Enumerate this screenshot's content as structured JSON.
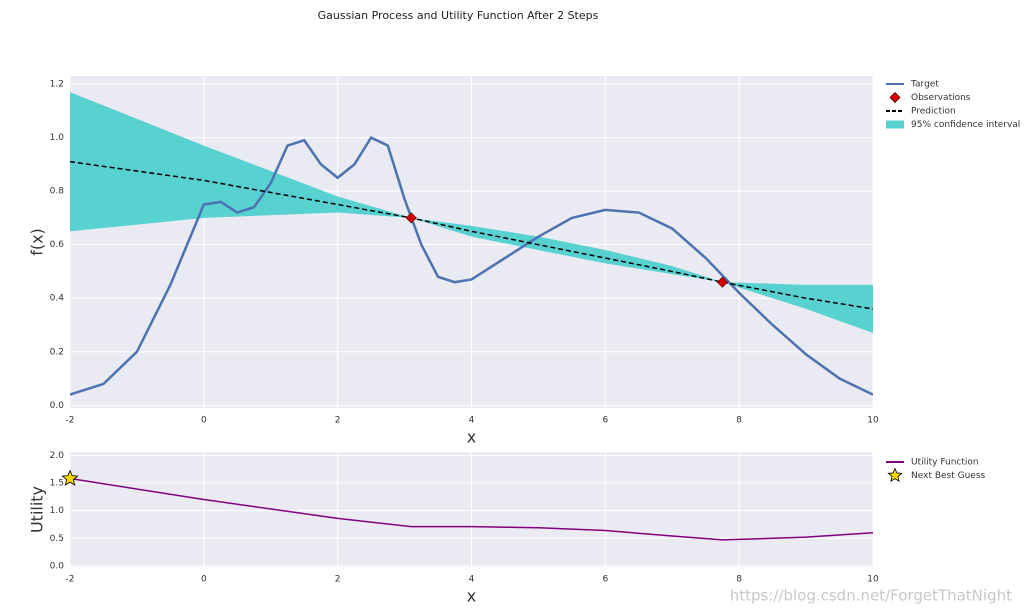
{
  "title": "Gaussian Process and Utility Function After 2 Steps",
  "watermark": "https://blog.csdn.net/ForgetThatNight",
  "chart_data": [
    {
      "type": "line",
      "xlabel": "x",
      "ylabel": "f(x)",
      "xlim": [
        -2,
        10
      ],
      "ylim": [
        -0.01,
        1.23
      ],
      "xticks": [
        -2,
        0,
        2,
        4,
        6,
        8,
        10
      ],
      "yticks": [
        {
          "value": 0,
          "label": "0.0"
        },
        0.2,
        0.4,
        0.6,
        0.8,
        {
          "value": 1,
          "label": "1.0"
        },
        1.2
      ],
      "grid": true,
      "legend": "outside right",
      "series": [
        {
          "name": "Target",
          "kind": "line",
          "style": "solid",
          "color": "#4c72b0",
          "x": [
            -2,
            -1.5,
            -1,
            -0.5,
            0,
            0.25,
            0.5,
            0.75,
            1,
            1.25,
            1.5,
            1.75,
            2,
            2.25,
            2.5,
            2.75,
            3,
            3.25,
            3.5,
            3.75,
            4,
            4.5,
            5,
            5.5,
            6,
            6.5,
            7,
            7.5,
            8,
            8.5,
            9,
            9.5,
            10
          ],
          "values": [
            0.04,
            0.08,
            0.2,
            0.45,
            0.75,
            0.76,
            0.72,
            0.74,
            0.83,
            0.97,
            0.99,
            0.9,
            0.85,
            0.9,
            1.0,
            0.97,
            0.77,
            0.6,
            0.48,
            0.46,
            0.47,
            0.55,
            0.63,
            0.7,
            0.73,
            0.72,
            0.66,
            0.55,
            0.42,
            0.3,
            0.19,
            0.1,
            0.04
          ]
        },
        {
          "name": "Observations",
          "kind": "scatter",
          "marker": "diamond",
          "color": "#d40000",
          "x": [
            3.1,
            7.75
          ],
          "values": [
            0.7,
            0.46
          ]
        },
        {
          "name": "Prediction",
          "kind": "line",
          "style": "dashed",
          "color": "#000000",
          "x": [
            -2,
            0,
            2,
            3.1,
            4,
            5,
            6,
            7,
            7.75,
            9,
            10
          ],
          "values": [
            0.91,
            0.84,
            0.75,
            0.7,
            0.65,
            0.6,
            0.55,
            0.5,
            0.46,
            0.4,
            0.36
          ]
        },
        {
          "name": "95% confidence interval",
          "kind": "band",
          "color": "#58d1d1",
          "x": [
            -2,
            0,
            2,
            3.1,
            4,
            5,
            6,
            7,
            7.75,
            9,
            10
          ],
          "lower": [
            0.65,
            0.7,
            0.72,
            0.7,
            0.63,
            0.58,
            0.53,
            0.49,
            0.46,
            0.36,
            0.27
          ],
          "upper": [
            1.17,
            0.97,
            0.78,
            0.7,
            0.67,
            0.63,
            0.58,
            0.52,
            0.46,
            0.45,
            0.45
          ]
        }
      ]
    },
    {
      "type": "line",
      "xlabel": "x",
      "ylabel": "Utility",
      "xlim": [
        -2,
        10
      ],
      "ylim": [
        -0.02,
        2.06
      ],
      "xticks": [
        -2,
        0,
        2,
        4,
        6,
        8,
        10
      ],
      "yticks": [
        {
          "value": 0,
          "label": "0.0"
        },
        0.5,
        {
          "value": 1,
          "label": "1.0"
        },
        1.5,
        {
          "value": 2,
          "label": "2.0"
        }
      ],
      "grid": true,
      "legend": "outside right",
      "series": [
        {
          "name": "Utility Function",
          "kind": "line",
          "style": "solid",
          "color": "#800080",
          "x": [
            -2,
            0,
            2,
            3.1,
            4,
            5,
            6,
            7,
            7.75,
            9,
            10
          ],
          "values": [
            1.58,
            1.2,
            0.86,
            0.71,
            0.71,
            0.69,
            0.64,
            0.54,
            0.47,
            0.52,
            0.6
          ]
        },
        {
          "name": "Next Best Guess",
          "kind": "scatter",
          "marker": "star",
          "color": "#ffd700",
          "x": [
            -2
          ],
          "values": [
            1.58
          ]
        }
      ]
    }
  ]
}
